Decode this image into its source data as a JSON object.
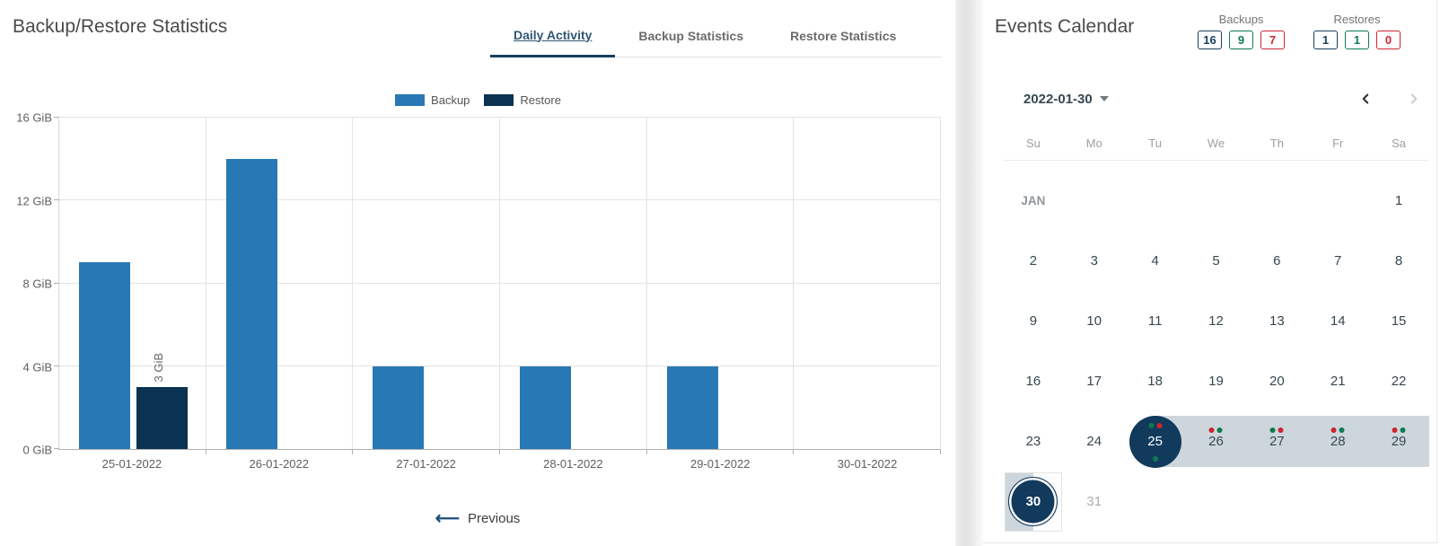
{
  "colors": {
    "backup_blue": "#2878b5",
    "restore_navy": "#0b3250",
    "circle_navy": "#113a5c",
    "range_band": "#cdd6dc",
    "navy": "#16405f",
    "green": "#0e7a50",
    "red": "#ce2430"
  },
  "left_panel": {
    "title": "Backup/Restore Statistics",
    "tabs": [
      {
        "label": "Daily Activity",
        "active": true
      },
      {
        "label": "Backup Statistics",
        "active": false
      },
      {
        "label": "Restore Statistics",
        "active": false
      }
    ],
    "previous_label": "Previous",
    "chart_data": {
      "type": "bar",
      "title": "Daily Activity",
      "categories": [
        "25-01-2022",
        "26-01-2022",
        "27-01-2022",
        "28-01-2022",
        "29-01-2022",
        "30-01-2022"
      ],
      "series": [
        {
          "name": "Backup",
          "color": "#2878b5",
          "values": [
            9,
            14,
            4,
            4,
            4,
            0
          ]
        },
        {
          "name": "Restore",
          "color": "#0b3250",
          "values": [
            3,
            0,
            0,
            0,
            0,
            0
          ]
        }
      ],
      "y_ticks": [
        "0 GiB",
        "4 GiB",
        "8 GiB",
        "12 GiB",
        "16 GiB"
      ],
      "ylim": [
        0,
        16
      ],
      "unit": "GiB",
      "grid": true,
      "legend_position": "top",
      "bar_labels": [
        {
          "category_index": 0,
          "series_index": 1,
          "value": 3,
          "text": "3 GiB"
        }
      ]
    }
  },
  "right_panel": {
    "title": "Events Calendar",
    "counters": {
      "backups": {
        "label": "Backups",
        "items": [
          {
            "value": "16",
            "color": "navy"
          },
          {
            "value": "9",
            "color": "green"
          },
          {
            "value": "7",
            "color": "red"
          }
        ]
      },
      "restores": {
        "label": "Restores",
        "items": [
          {
            "value": "1",
            "color": "navy"
          },
          {
            "value": "1",
            "color": "green"
          },
          {
            "value": "0",
            "color": "red"
          }
        ]
      }
    },
    "calendar": {
      "selected_date": "2022-01-30",
      "nav": {
        "prev_enabled": true,
        "next_enabled": false
      },
      "weekdays": [
        "Su",
        "Mo",
        "Tu",
        "We",
        "Th",
        "Fr",
        "Sa"
      ],
      "month_label": "JAN",
      "weeks": [
        [
          {
            "month": "JAN"
          },
          null,
          null,
          null,
          null,
          null,
          {
            "day": "1"
          }
        ],
        [
          {
            "day": "2"
          },
          {
            "day": "3"
          },
          {
            "day": "4"
          },
          {
            "day": "5"
          },
          {
            "day": "6"
          },
          {
            "day": "7"
          },
          {
            "day": "8"
          }
        ],
        [
          {
            "day": "9"
          },
          {
            "day": "10"
          },
          {
            "day": "11"
          },
          {
            "day": "12"
          },
          {
            "day": "13"
          },
          {
            "day": "14"
          },
          {
            "day": "15"
          }
        ],
        [
          {
            "day": "16"
          },
          {
            "day": "17"
          },
          {
            "day": "18"
          },
          {
            "day": "19"
          },
          {
            "day": "20"
          },
          {
            "day": "21"
          },
          {
            "day": "22"
          }
        ],
        [
          {
            "day": "23"
          },
          {
            "day": "24"
          },
          {
            "day": "25",
            "style": "circle",
            "range": "start",
            "dots_top": [
              "green",
              "red"
            ],
            "dots_bottom": [
              "green"
            ]
          },
          {
            "day": "26",
            "range": "mid",
            "dots_top": [
              "red",
              "green"
            ]
          },
          {
            "day": "27",
            "range": "mid",
            "dots_top": [
              "green",
              "red"
            ]
          },
          {
            "day": "28",
            "range": "mid",
            "dots_top": [
              "red",
              "green"
            ]
          },
          {
            "day": "29",
            "range": "mid",
            "dots_top": [
              "red",
              "green"
            ]
          }
        ],
        [
          {
            "day": "30",
            "style": "ring",
            "range": "end"
          },
          {
            "day": "31",
            "muted": true
          },
          null,
          null,
          null,
          null,
          null
        ]
      ]
    }
  }
}
